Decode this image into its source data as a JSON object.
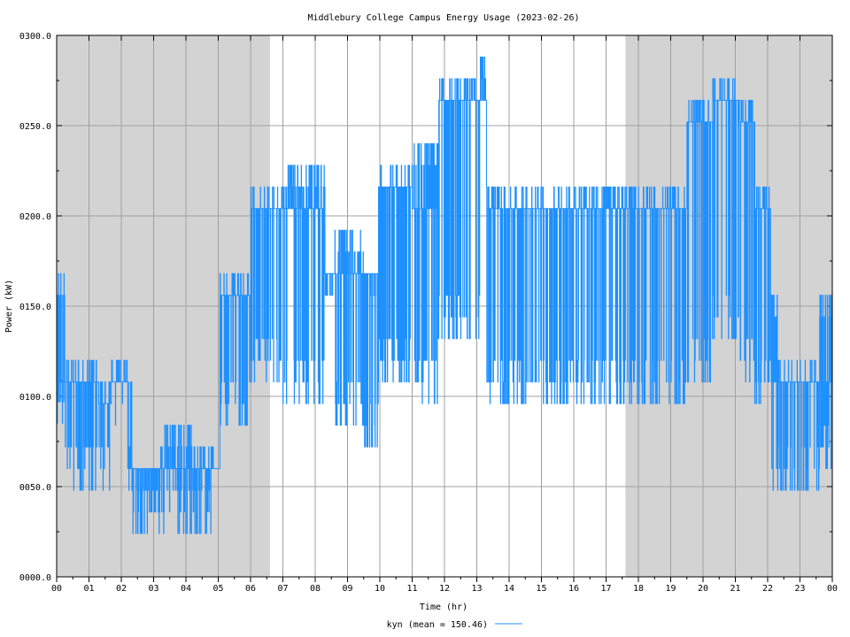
{
  "chart_data": {
    "type": "line",
    "title": "Middlebury College Campus Energy Usage (2023-02-26)",
    "xlabel": "Time (hr)",
    "ylabel": "Power (kW)",
    "xlim": [
      0,
      24
    ],
    "ylim": [
      0,
      300
    ],
    "x_ticks": [
      0,
      1,
      2,
      3,
      4,
      5,
      6,
      7,
      8,
      9,
      10,
      11,
      12,
      13,
      14,
      15,
      16,
      17,
      18,
      19,
      20,
      21,
      22,
      23,
      24
    ],
    "x_tick_labels": [
      "00",
      "01",
      "02",
      "03",
      "04",
      "05",
      "06",
      "07",
      "08",
      "09",
      "10",
      "11",
      "12",
      "13",
      "14",
      "15",
      "16",
      "17",
      "18",
      "19",
      "20",
      "21",
      "22",
      "23",
      "00"
    ],
    "y_ticks": [
      0,
      50,
      100,
      150,
      200,
      250,
      300
    ],
    "y_tick_labels": [
      "0000.0",
      "0050.0",
      "0100.0",
      "0150.0",
      "0200.0",
      "0250.0",
      "0300.0"
    ],
    "grid": true,
    "shaded_ranges_hr": [
      [
        0,
        6.6
      ],
      [
        17.6,
        24
      ]
    ],
    "shade_color": "#d3d3d3",
    "series_color": "#1e90ff",
    "legend": {
      "label": "kyn (mean = 150.46)",
      "placement": "bottom-center"
    },
    "series": [
      {
        "name": "kyn",
        "mean": 150.46,
        "segments": [
          {
            "x0": 0.0,
            "x1": 0.25,
            "low": 85,
            "high": 168,
            "base": 108
          },
          {
            "x0": 0.25,
            "x1": 1.3,
            "low": 48,
            "high": 120,
            "base": 108
          },
          {
            "x0": 1.3,
            "x1": 1.7,
            "low": 48,
            "high": 108,
            "base": 96
          },
          {
            "x0": 1.7,
            "x1": 2.05,
            "low": 84,
            "high": 120,
            "base": 108
          },
          {
            "x0": 2.05,
            "x1": 2.2,
            "low": 96,
            "high": 120,
            "base": 108
          },
          {
            "x0": 2.2,
            "x1": 2.35,
            "low": 48,
            "high": 108,
            "base": 60
          },
          {
            "x0": 2.35,
            "x1": 3.2,
            "low": 24,
            "high": 60,
            "base": 60
          },
          {
            "x0": 3.2,
            "x1": 4.2,
            "low": 24,
            "high": 84,
            "base": 60
          },
          {
            "x0": 4.2,
            "x1": 4.9,
            "low": 24,
            "high": 72,
            "base": 60
          },
          {
            "x0": 4.9,
            "x1": 5.05,
            "low": 60,
            "high": 60,
            "base": 60
          },
          {
            "x0": 5.05,
            "x1": 5.5,
            "low": 84,
            "high": 168,
            "base": 156
          },
          {
            "x0": 5.5,
            "x1": 6.0,
            "low": 84,
            "high": 168,
            "base": 156
          },
          {
            "x0": 6.0,
            "x1": 7.0,
            "low": 108,
            "high": 216,
            "base": 204
          },
          {
            "x0": 7.0,
            "x1": 8.3,
            "low": 96,
            "high": 228,
            "base": 204
          },
          {
            "x0": 8.3,
            "x1": 8.6,
            "low": 156,
            "high": 168,
            "base": 168
          },
          {
            "x0": 8.6,
            "x1": 9.5,
            "low": 84,
            "high": 192,
            "base": 168
          },
          {
            "x0": 9.5,
            "x1": 9.95,
            "low": 72,
            "high": 168,
            "base": 168
          },
          {
            "x0": 9.95,
            "x1": 11.0,
            "low": 108,
            "high": 228,
            "base": 216
          },
          {
            "x0": 11.0,
            "x1": 11.8,
            "low": 96,
            "high": 240,
            "base": 204
          },
          {
            "x0": 11.8,
            "x1": 13.1,
            "low": 132,
            "high": 276,
            "base": 264
          },
          {
            "x0": 13.1,
            "x1": 13.3,
            "low": 264,
            "high": 288,
            "base": 264
          },
          {
            "x0": 13.3,
            "x1": 14.2,
            "low": 96,
            "high": 216,
            "base": 204
          },
          {
            "x0": 14.2,
            "x1": 15.5,
            "low": 96,
            "high": 216,
            "base": 204
          },
          {
            "x0": 15.5,
            "x1": 17.6,
            "low": 96,
            "high": 216,
            "base": 204
          },
          {
            "x0": 17.6,
            "x1": 19.5,
            "low": 96,
            "high": 216,
            "base": 204
          },
          {
            "x0": 19.5,
            "x1": 20.3,
            "low": 108,
            "high": 264,
            "base": 252
          },
          {
            "x0": 20.3,
            "x1": 21.1,
            "low": 132,
            "high": 276,
            "base": 264
          },
          {
            "x0": 21.1,
            "x1": 21.6,
            "low": 108,
            "high": 264,
            "base": 252
          },
          {
            "x0": 21.6,
            "x1": 22.1,
            "low": 96,
            "high": 216,
            "base": 204
          },
          {
            "x0": 22.1,
            "x1": 22.3,
            "low": 48,
            "high": 156,
            "base": 108
          },
          {
            "x0": 22.3,
            "x1": 23.6,
            "low": 48,
            "high": 120,
            "base": 108
          },
          {
            "x0": 23.6,
            "x1": 24.0,
            "low": 60,
            "high": 156,
            "base": 108
          }
        ]
      }
    ]
  }
}
